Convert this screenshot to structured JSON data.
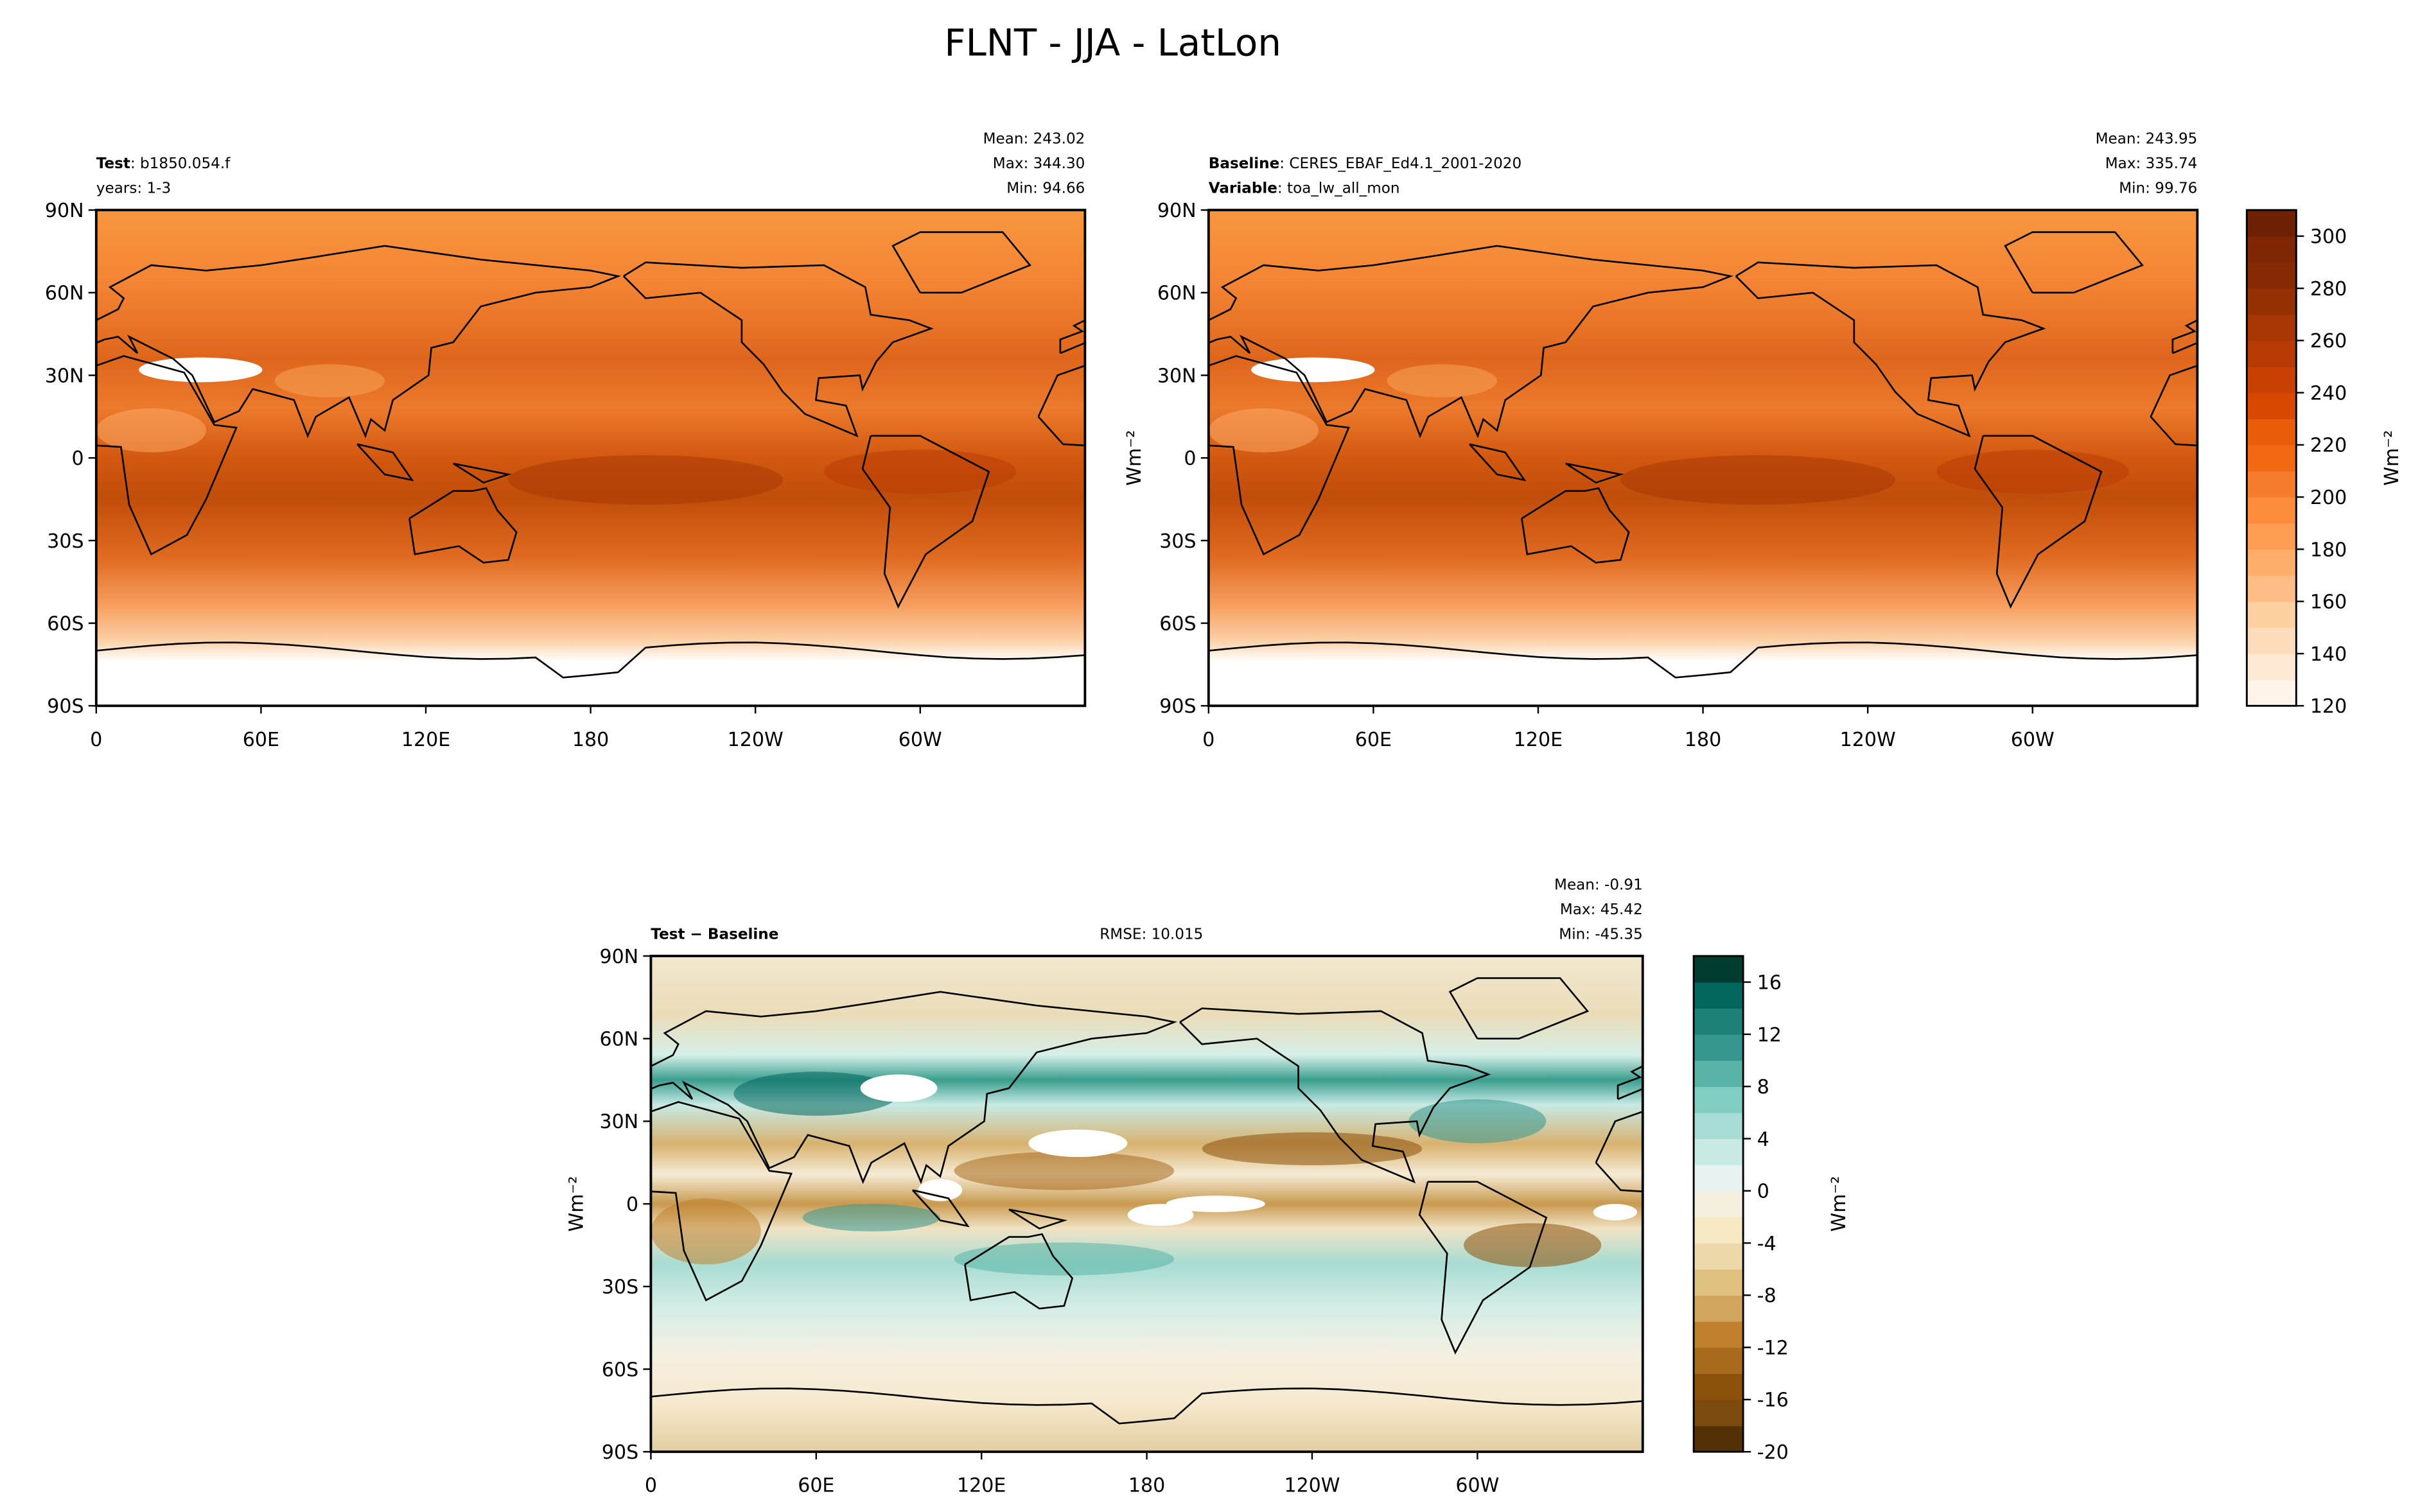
{
  "title": "FLNT - JJA - LatLon",
  "chart_data": [
    {
      "type": "map",
      "left_label": "Test",
      "left_value": ": b1850.054.f",
      "left_line2": "years: 1-3",
      "stats": [
        "Mean: 243.02",
        "Max: 344.30",
        "Min: 94.66"
      ],
      "xlim": [
        0,
        360
      ],
      "ylim": [
        -90,
        90
      ],
      "xticks": [
        0,
        {
          "value": 60,
          "label": "60E"
        },
        {
          "value": 120,
          "label": "120E"
        },
        180,
        {
          "value": 240,
          "label": "120W"
        },
        {
          "value": 300,
          "label": "60W"
        }
      ],
      "yticks": [
        {
          "value": -90,
          "label": "90S"
        },
        {
          "value": -60,
          "label": "60S"
        },
        {
          "value": -30,
          "label": "30S"
        },
        0,
        {
          "value": 30,
          "label": "30N"
        },
        {
          "value": 60,
          "label": "60N"
        },
        {
          "value": 90,
          "label": "90N"
        }
      ],
      "field": "absolute"
    },
    {
      "type": "map",
      "left_label": "Baseline",
      "left_value": ": CERES_EBAF_Ed4.1_2001-2020",
      "left_label2": "Variable",
      "left_value2": ": toa_lw_all_mon",
      "stats": [
        "Mean: 243.95",
        "Max: 335.74",
        "Min: 99.76"
      ],
      "ylabel": "Wm⁻²",
      "xlim": [
        0,
        360
      ],
      "ylim": [
        -90,
        90
      ],
      "xticks": [
        0,
        {
          "value": 60,
          "label": "60E"
        },
        {
          "value": 120,
          "label": "120E"
        },
        180,
        {
          "value": 240,
          "label": "120W"
        },
        {
          "value": 300,
          "label": "60W"
        }
      ],
      "yticks": [
        {
          "value": -90,
          "label": "90S"
        },
        {
          "value": -60,
          "label": "60S"
        },
        {
          "value": -30,
          "label": "30S"
        },
        0,
        {
          "value": 30,
          "label": "30N"
        },
        {
          "value": 60,
          "label": "60N"
        },
        {
          "value": 90,
          "label": "90N"
        }
      ],
      "field": "absolute",
      "colorbar": {
        "clim": [
          120,
          310
        ],
        "ticks": [
          120,
          140,
          160,
          180,
          200,
          220,
          240,
          260,
          280,
          300
        ],
        "label": "Wm⁻²",
        "colors": [
          "#fff5eb",
          "#fee9d4",
          "#fddcbc",
          "#fdd0a2",
          "#fdbd84",
          "#fdae6b",
          "#fd9d53",
          "#fd8d3c",
          "#f77d2c",
          "#f16913",
          "#e85c0c",
          "#d94801",
          "#c84003",
          "#b73904",
          "#a63603",
          "#953003",
          "#862a04",
          "#7f2704",
          "#6e2203"
        ]
      }
    },
    {
      "type": "map",
      "left_label": "Test − Baseline",
      "center_text": "RMSE: 10.015",
      "stats": [
        "Mean: -0.91",
        "Max: 45.42",
        "Min: -45.35"
      ],
      "ylabel": "Wm⁻²",
      "xlim": [
        0,
        360
      ],
      "ylim": [
        -90,
        90
      ],
      "xticks": [
        0,
        {
          "value": 60,
          "label": "60E"
        },
        {
          "value": 120,
          "label": "120E"
        },
        180,
        {
          "value": 240,
          "label": "120W"
        },
        {
          "value": 300,
          "label": "60W"
        }
      ],
      "yticks": [
        {
          "value": -90,
          "label": "90S"
        },
        {
          "value": -60,
          "label": "60S"
        },
        {
          "value": -30,
          "label": "30S"
        },
        0,
        {
          "value": 30,
          "label": "30N"
        },
        {
          "value": 60,
          "label": "60N"
        },
        {
          "value": 90,
          "label": "90N"
        }
      ],
      "field": "difference",
      "colorbar": {
        "clim": [
          -20,
          18
        ],
        "ticks": [
          -20,
          -16,
          -12,
          -8,
          -4,
          0,
          4,
          8,
          12,
          16
        ],
        "label": "Wm⁻²",
        "colors": [
          "#543005",
          "#7a4a0e",
          "#8c510a",
          "#a86a1c",
          "#bf812d",
          "#d2a55e",
          "#dfc27d",
          "#ecd8a8",
          "#f6e8c3",
          "#f5f0e0",
          "#e6f3f0",
          "#c7eae5",
          "#a6dcd3",
          "#80cdc1",
          "#5ab4a8",
          "#35978f",
          "#1d8178",
          "#01665e",
          "#003c30"
        ]
      }
    }
  ]
}
